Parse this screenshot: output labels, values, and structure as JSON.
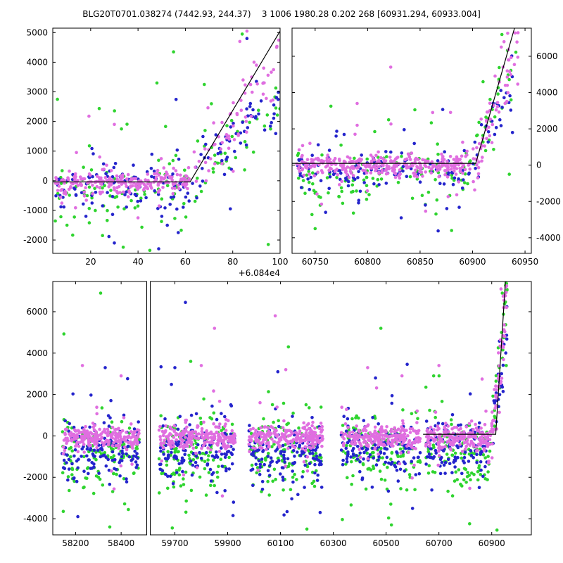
{
  "title": "BLG20T0701.038274 (7442.93, 244.37)    3 1006 1980.28 0.202 268 [60931.294, 60933.004]",
  "colors": {
    "violet": "#e06ee0",
    "blue": "#2424cc",
    "green": "#2fd42f",
    "line": "#000000",
    "frame": "#000000",
    "background": "#ffffff"
  },
  "chart_data": [
    {
      "name": "top-left",
      "type": "scatter",
      "segments": [
        {
          "xlim": [
            4,
            100
          ],
          "frac": 1
        }
      ],
      "ylim": [
        -2450,
        5150
      ],
      "xticks": [
        [
          20,
          40,
          60,
          80,
          100
        ]
      ],
      "yticks": [
        -2000,
        -1000,
        0,
        1000,
        2000,
        3000,
        4000,
        5000
      ],
      "ytick_side": "left",
      "x_offset_label": "+6.084e4",
      "line": [
        [
          4,
          -40
        ],
        [
          62,
          -40
        ],
        [
          100,
          5050
        ]
      ],
      "series": [
        {
          "color": "green",
          "clusters": [
            {
              "x0": 5,
              "x1": 62,
              "n": 95,
              "mu": -250,
              "sigma": 650,
              "pout": 0.12,
              "kout": 2.6
            },
            {
              "x0": 63,
              "x1": 100,
              "n": 42,
              "y0": 100,
              "y1": 2600,
              "sigma": 650
            }
          ],
          "extras": [
            [
              55,
              4350
            ],
            [
              48,
              3300
            ],
            [
              68,
              3250
            ],
            [
              33,
              1750
            ],
            [
              45,
              -2350
            ],
            [
              95,
              -2150
            ],
            [
              84,
              4950
            ],
            [
              71,
              2600
            ],
            [
              10,
              -1500
            ],
            [
              25,
              -1850
            ]
          ]
        },
        {
          "color": "blue",
          "clusters": [
            {
              "x0": 5,
              "x1": 62,
              "n": 100,
              "mu": -180,
              "sigma": 480,
              "pout": 0.12,
              "kout": 3.2
            },
            {
              "x0": 63,
              "x1": 100,
              "n": 55,
              "y0": 100,
              "y1": 3000,
              "sigma": 480
            }
          ],
          "extras": [
            [
              86,
              4800
            ],
            [
              30,
              -2100
            ],
            [
              57,
              -1750
            ],
            [
              90,
              3350
            ],
            [
              93,
              3300
            ],
            [
              79,
              -950
            ],
            [
              18,
              -1200
            ]
          ]
        },
        {
          "color": "violet",
          "clusters": [
            {
              "x0": 5,
              "x1": 62,
              "n": 240,
              "mu": -60,
              "sigma": 170,
              "pout": 0.07,
              "kout": 5
            },
            {
              "x0": 63,
              "x1": 100,
              "n": 60,
              "y0": 150,
              "y1": 3800,
              "sigma": 520
            }
          ],
          "extras": [
            [
              86,
              5050
            ],
            [
              83,
              4700
            ],
            [
              89,
              4000
            ],
            [
              30,
              1900
            ],
            [
              14,
              950
            ],
            [
              40,
              -1250
            ],
            [
              90,
              3900
            ],
            [
              88,
              3500
            ]
          ]
        }
      ]
    },
    {
      "name": "top-right",
      "type": "scatter",
      "segments": [
        {
          "xlim": [
            60728,
            60956
          ],
          "frac": 1
        }
      ],
      "ylim": [
        -4860,
        7550
      ],
      "xticks": [
        [
          60750,
          60800,
          60850,
          60900,
          60950
        ]
      ],
      "yticks": [
        -4000,
        -2000,
        0,
        2000,
        4000,
        6000
      ],
      "ytick_side": "right",
      "line": [
        [
          60728,
          100
        ],
        [
          60903,
          100
        ],
        [
          60940,
          7550
        ]
      ],
      "series": [
        {
          "color": "green",
          "clusters": [
            {
              "x0": 60732,
              "x1": 60898,
              "n": 115,
              "mu": -450,
              "sigma": 800,
              "pout": 0.12,
              "kout": 2.4
            },
            {
              "x0": 60900,
              "x1": 60942,
              "n": 30,
              "y0": 0,
              "y1": 6500,
              "sigma": 900
            }
          ],
          "extras": [
            [
              60765,
              3250
            ],
            [
              60845,
              3050
            ],
            [
              60820,
              2500
            ],
            [
              60928,
              7200
            ],
            [
              60935,
              -500
            ],
            [
              60750,
              -3500
            ],
            [
              60880,
              -3600
            ],
            [
              60910,
              4600
            ]
          ]
        },
        {
          "color": "blue",
          "clusters": [
            {
              "x0": 60732,
              "x1": 60898,
              "n": 130,
              "mu": -300,
              "sigma": 620,
              "pout": 0.12,
              "kout": 2.6
            },
            {
              "x0": 60900,
              "x1": 60942,
              "n": 26,
              "y0": 0,
              "y1": 5200,
              "sigma": 800
            }
          ],
          "extras": [
            [
              60760,
              -2600
            ],
            [
              60832,
              -2900
            ],
            [
              60926,
              2500
            ],
            [
              60938,
              1800
            ],
            [
              60770,
              1600
            ],
            [
              60855,
              -2200
            ]
          ]
        },
        {
          "color": "violet",
          "clusters": [
            {
              "x0": 60732,
              "x1": 60898,
              "n": 330,
              "mu": 0,
              "sigma": 300,
              "pout": 0.08,
              "kout": 4
            },
            {
              "x0": 60900,
              "x1": 60944,
              "n": 60,
              "y0": 100,
              "y1": 6800,
              "sigma": 900
            }
          ],
          "extras": [
            [
              60822,
              5400
            ],
            [
              60790,
              3400
            ],
            [
              60790,
              2200
            ],
            [
              60788,
              1700
            ],
            [
              60862,
              2900
            ],
            [
              60920,
              3300
            ],
            [
              60930,
              6800
            ],
            [
              60934,
              5800
            ],
            [
              60745,
              1200
            ],
            [
              60905,
              -700
            ]
          ]
        }
      ]
    },
    {
      "name": "bottom",
      "type": "scatter",
      "segments": [
        {
          "xlim": [
            58100,
            58520
          ],
          "frac": 0.2
        },
        {
          "xlim": [
            59600,
            61050
          ],
          "frac": 0.8
        }
      ],
      "ylim": [
        -4780,
        7460
      ],
      "xticks": [
        [
          58200,
          58400
        ],
        [
          59700,
          59900,
          60100,
          60300,
          60500,
          60700,
          60900
        ]
      ],
      "yticks": [
        -4000,
        -2000,
        0,
        2000,
        4000,
        6000
      ],
      "ytick_side": "left",
      "line": [
        [
          60640,
          80
        ],
        [
          60915,
          80
        ],
        [
          60952,
          7460
        ]
      ],
      "series": [
        {
          "color": "green",
          "clusters": [
            {
              "x0": 58140,
              "x1": 58480,
              "n": 125,
              "mu": -780,
              "sigma": 880,
              "pout": 0.1,
              "kout": 2.3
            },
            {
              "x0": 59640,
              "x1": 59930,
              "n": 125,
              "mu": -780,
              "sigma": 880,
              "pout": 0.1,
              "kout": 2.3
            },
            {
              "x0": 59980,
              "x1": 60260,
              "n": 125,
              "mu": -780,
              "sigma": 880,
              "pout": 0.1,
              "kout": 2.3
            },
            {
              "x0": 60330,
              "x1": 60630,
              "n": 125,
              "mu": -780,
              "sigma": 880,
              "pout": 0.1,
              "kout": 2.3
            },
            {
              "x0": 60650,
              "x1": 60900,
              "n": 110,
              "mu": -780,
              "sigma": 880,
              "pout": 0.1,
              "kout": 2.3
            },
            {
              "x0": 60900,
              "x1": 60958,
              "n": 30,
              "y0": 0,
              "y1": 6800,
              "sigma": 1100
            }
          ],
          "extras": [
            [
              58310,
              6900
            ],
            [
              59690,
              -4450
            ],
            [
              60200,
              -4500
            ],
            [
              60520,
              -4300
            ],
            [
              60920,
              -4550
            ],
            [
              60480,
              5200
            ],
            [
              60130,
              4300
            ],
            [
              58350,
              -4400
            ],
            [
              60680,
              2900
            ],
            [
              59760,
              3600
            ],
            [
              60940,
              6900
            ],
            [
              60955,
              3400
            ]
          ]
        },
        {
          "color": "blue",
          "clusters": [
            {
              "x0": 58140,
              "x1": 58480,
              "n": 135,
              "mu": -650,
              "sigma": 720,
              "pout": 0.1,
              "kout": 2.4
            },
            {
              "x0": 59640,
              "x1": 59930,
              "n": 135,
              "mu": -650,
              "sigma": 720,
              "pout": 0.1,
              "kout": 2.4
            },
            {
              "x0": 59980,
              "x1": 60260,
              "n": 135,
              "mu": -650,
              "sigma": 720,
              "pout": 0.1,
              "kout": 2.4
            },
            {
              "x0": 60330,
              "x1": 60630,
              "n": 135,
              "mu": -650,
              "sigma": 720,
              "pout": 0.1,
              "kout": 2.4
            },
            {
              "x0": 60650,
              "x1": 60900,
              "n": 120,
              "mu": -650,
              "sigma": 720,
              "pout": 0.1,
              "kout": 2.4
            },
            {
              "x0": 60900,
              "x1": 60958,
              "n": 24,
              "y0": 0,
              "y1": 5200,
              "sigma": 900
            }
          ],
          "extras": [
            [
              59740,
              6450
            ],
            [
              58330,
              3300
            ],
            [
              60250,
              -3700
            ],
            [
              60600,
              -3500
            ],
            [
              58210,
              -3900
            ],
            [
              59920,
              -3850
            ],
            [
              60930,
              2600
            ],
            [
              60090,
              3100
            ],
            [
              60460,
              2800
            ],
            [
              59700,
              3300
            ]
          ]
        },
        {
          "color": "violet",
          "clusters": [
            {
              "x0": 58140,
              "x1": 58480,
              "n": 230,
              "mu": -80,
              "sigma": 280,
              "pout": 0.07,
              "kout": 4
            },
            {
              "x0": 59640,
              "x1": 59930,
              "n": 230,
              "mu": -80,
              "sigma": 280,
              "pout": 0.07,
              "kout": 4
            },
            {
              "x0": 59980,
              "x1": 60260,
              "n": 230,
              "mu": -80,
              "sigma": 280,
              "pout": 0.07,
              "kout": 4
            },
            {
              "x0": 60330,
              "x1": 60630,
              "n": 230,
              "mu": -80,
              "sigma": 280,
              "pout": 0.07,
              "kout": 4
            },
            {
              "x0": 60650,
              "x1": 60900,
              "n": 200,
              "mu": -80,
              "sigma": 280,
              "pout": 0.07,
              "kout": 4
            },
            {
              "x0": 60900,
              "x1": 60958,
              "n": 55,
              "y0": 100,
              "y1": 7000,
              "sigma": 900
            }
          ],
          "extras": [
            [
              59850,
              5200
            ],
            [
              60080,
              5800
            ],
            [
              58230,
              3400
            ],
            [
              60430,
              3300
            ],
            [
              60700,
              3400
            ],
            [
              59800,
              3400
            ],
            [
              60560,
              2900
            ],
            [
              58400,
              2900
            ],
            [
              60935,
              7100
            ],
            [
              60945,
              6200
            ],
            [
              60120,
              3200
            ],
            [
              59880,
              -2900
            ]
          ]
        }
      ]
    }
  ]
}
